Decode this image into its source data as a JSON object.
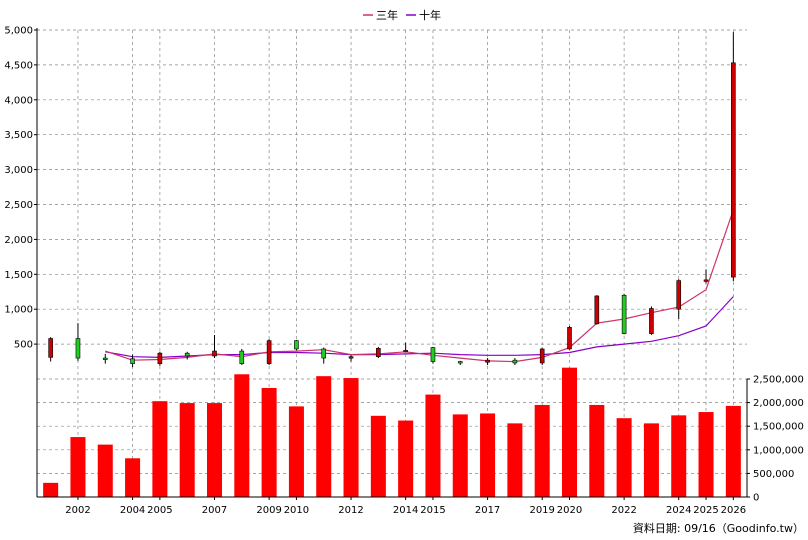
{
  "chart_data": {
    "type": "candlestick-with-volume",
    "legend": [
      {
        "name": "三年",
        "color": "#cc3366"
      },
      {
        "name": "十年",
        "color": "#8800cc"
      }
    ],
    "x_tick_labels": [
      "2002",
      "2004",
      "2005",
      "2007",
      "2009",
      "2010",
      "2012",
      "2014",
      "2015",
      "2017",
      "2019",
      "2020",
      "2022",
      "2024",
      "2025",
      "2026"
    ],
    "price_axis": {
      "min": 0,
      "max": 5000,
      "ticks": [
        "500",
        "1,000",
        "1,500",
        "2,000",
        "2,500",
        "3,000",
        "3,500",
        "4,000",
        "4,500",
        "5,000"
      ]
    },
    "volume_axis": {
      "min": 0,
      "max": 2500000,
      "ticks": [
        "0",
        "500,000",
        "1,000,000",
        "1,500,000",
        "2,000,000",
        "2,500,000"
      ]
    },
    "candles": [
      {
        "year": 2001,
        "open": 310,
        "high": 600,
        "low": 250,
        "close": 580
      },
      {
        "year": 2002,
        "open": 580,
        "high": 800,
        "low": 260,
        "close": 300
      },
      {
        "year": 2003,
        "open": 300,
        "high": 360,
        "low": 220,
        "close": 290
      },
      {
        "year": 2004,
        "open": 290,
        "high": 350,
        "low": 170,
        "close": 220
      },
      {
        "year": 2005,
        "open": 220,
        "high": 390,
        "low": 190,
        "close": 370
      },
      {
        "year": 2006,
        "open": 370,
        "high": 390,
        "low": 280,
        "close": 330
      },
      {
        "year": 2007,
        "open": 330,
        "high": 630,
        "low": 300,
        "close": 400
      },
      {
        "year": 2008,
        "open": 400,
        "high": 430,
        "low": 200,
        "close": 220
      },
      {
        "year": 2009,
        "open": 220,
        "high": 570,
        "low": 200,
        "close": 550
      },
      {
        "year": 2010,
        "open": 550,
        "high": 560,
        "low": 410,
        "close": 430
      },
      {
        "year": 2011,
        "open": 430,
        "high": 450,
        "low": 220,
        "close": 300
      },
      {
        "year": 2012,
        "open": 300,
        "high": 340,
        "low": 250,
        "close": 320
      },
      {
        "year": 2013,
        "open": 320,
        "high": 460,
        "low": 300,
        "close": 440
      },
      {
        "year": 2014,
        "open": 400,
        "high": 520,
        "low": 380,
        "close": 410
      },
      {
        "year": 2015,
        "open": 450,
        "high": 460,
        "low": 220,
        "close": 250
      },
      {
        "year": 2016,
        "open": 250,
        "high": 260,
        "low": 200,
        "close": 240
      },
      {
        "year": 2017,
        "open": 240,
        "high": 300,
        "low": 200,
        "close": 270
      },
      {
        "year": 2018,
        "open": 270,
        "high": 300,
        "low": 200,
        "close": 230
      },
      {
        "year": 2019,
        "open": 230,
        "high": 450,
        "low": 200,
        "close": 430
      },
      {
        "year": 2020,
        "open": 430,
        "high": 760,
        "low": 420,
        "close": 740
      },
      {
        "year": 2021,
        "open": 790,
        "high": 1200,
        "low": 780,
        "close": 1190
      },
      {
        "year": 2022,
        "open": 1200,
        "high": 1220,
        "low": 640,
        "close": 650
      },
      {
        "year": 2023,
        "open": 650,
        "high": 1040,
        "low": 630,
        "close": 1010
      },
      {
        "year": 2024,
        "open": 1000,
        "high": 1430,
        "low": 860,
        "close": 1410
      },
      {
        "year": 2025,
        "open": 1400,
        "high": 1570,
        "low": 1370,
        "close": 1420
      },
      {
        "year": 2026,
        "open": 1460,
        "high": 4970,
        "low": 1400,
        "close": 4530
      }
    ],
    "ma3": [
      {
        "year": 2003,
        "value": 400
      },
      {
        "year": 2004,
        "value": 270
      },
      {
        "year": 2005,
        "value": 280
      },
      {
        "year": 2006,
        "value": 310
      },
      {
        "year": 2007,
        "value": 360
      },
      {
        "year": 2008,
        "value": 320
      },
      {
        "year": 2009,
        "value": 390
      },
      {
        "year": 2010,
        "value": 400
      },
      {
        "year": 2011,
        "value": 420
      },
      {
        "year": 2012,
        "value": 350
      },
      {
        "year": 2013,
        "value": 360
      },
      {
        "year": 2014,
        "value": 390
      },
      {
        "year": 2015,
        "value": 340
      },
      {
        "year": 2016,
        "value": 300
      },
      {
        "year": 2017,
        "value": 260
      },
      {
        "year": 2018,
        "value": 250
      },
      {
        "year": 2019,
        "value": 310
      },
      {
        "year": 2020,
        "value": 450
      },
      {
        "year": 2021,
        "value": 800
      },
      {
        "year": 2022,
        "value": 860
      },
      {
        "year": 2023,
        "value": 950
      },
      {
        "year": 2024,
        "value": 1030
      },
      {
        "year": 2025,
        "value": 1280
      },
      {
        "year": 2026,
        "value": 2420
      }
    ],
    "ma10": [
      {
        "year": 2003,
        "value": 390
      },
      {
        "year": 2004,
        "value": 320
      },
      {
        "year": 2005,
        "value": 310
      },
      {
        "year": 2006,
        "value": 330
      },
      {
        "year": 2007,
        "value": 350
      },
      {
        "year": 2008,
        "value": 350
      },
      {
        "year": 2009,
        "value": 380
      },
      {
        "year": 2010,
        "value": 380
      },
      {
        "year": 2011,
        "value": 370
      },
      {
        "year": 2012,
        "value": 350
      },
      {
        "year": 2013,
        "value": 350
      },
      {
        "year": 2014,
        "value": 360
      },
      {
        "year": 2015,
        "value": 370
      },
      {
        "year": 2016,
        "value": 350
      },
      {
        "year": 2017,
        "value": 340
      },
      {
        "year": 2018,
        "value": 340
      },
      {
        "year": 2019,
        "value": 350
      },
      {
        "year": 2020,
        "value": 380
      },
      {
        "year": 2021,
        "value": 460
      },
      {
        "year": 2022,
        "value": 500
      },
      {
        "year": 2023,
        "value": 540
      },
      {
        "year": 2024,
        "value": 620
      },
      {
        "year": 2025,
        "value": 760
      },
      {
        "year": 2026,
        "value": 1180
      }
    ],
    "volume": [
      {
        "year": 2001,
        "value": 300000
      },
      {
        "year": 2002,
        "value": 1270000
      },
      {
        "year": 2003,
        "value": 1110000
      },
      {
        "year": 2004,
        "value": 820000
      },
      {
        "year": 2005,
        "value": 2030000
      },
      {
        "year": 2006,
        "value": 1990000
      },
      {
        "year": 2007,
        "value": 1990000
      },
      {
        "year": 2008,
        "value": 2600000
      },
      {
        "year": 2009,
        "value": 2310000
      },
      {
        "year": 2010,
        "value": 1920000
      },
      {
        "year": 2011,
        "value": 2560000
      },
      {
        "year": 2012,
        "value": 2520000
      },
      {
        "year": 2013,
        "value": 1720000
      },
      {
        "year": 2014,
        "value": 1620000
      },
      {
        "year": 2015,
        "value": 2170000
      },
      {
        "year": 2016,
        "value": 1750000
      },
      {
        "year": 2017,
        "value": 1770000
      },
      {
        "year": 2018,
        "value": 1560000
      },
      {
        "year": 2019,
        "value": 1950000
      },
      {
        "year": 2020,
        "value": 2740000
      },
      {
        "year": 2021,
        "value": 1950000
      },
      {
        "year": 2022,
        "value": 1670000
      },
      {
        "year": 2023,
        "value": 1560000
      },
      {
        "year": 2024,
        "value": 1730000
      },
      {
        "year": 2025,
        "value": 1800000
      },
      {
        "year": 2026,
        "value": 1930000
      }
    ],
    "colors": {
      "up": "#cc0000",
      "down": "#22cc22",
      "volume": "#ff0000",
      "grid": "#888888"
    }
  },
  "credit": "資料日期: 09/16（Goodinfo.tw）"
}
